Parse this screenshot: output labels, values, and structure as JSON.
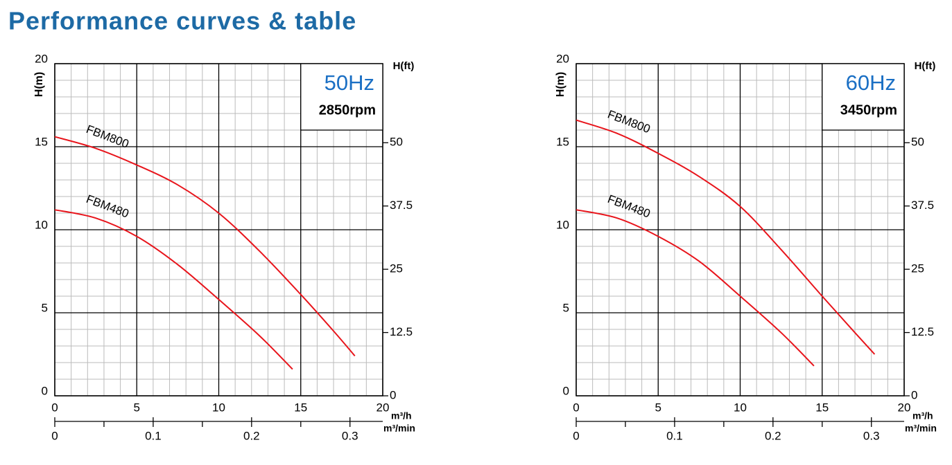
{
  "title": "Performance curves & table",
  "chart_data": [
    {
      "type": "line",
      "badge": "50Hz",
      "speed": "2850rpm",
      "ylabel": "H(m)",
      "y2label": "H(ft)",
      "xlabel": "m³/h",
      "x2label": "m³/min",
      "xlim": [
        0,
        20
      ],
      "xticks": [
        0,
        5,
        10,
        15,
        20
      ],
      "ylim": [
        0,
        20
      ],
      "yticks": [
        0,
        5,
        10,
        15,
        20
      ],
      "y2lim": [
        0,
        65.62
      ],
      "y2ticks": [
        0,
        12.5,
        25,
        37.5,
        50
      ],
      "x2lim": [
        0,
        0.3333
      ],
      "x2ticks": [
        0,
        0.1,
        0.2,
        0.3
      ],
      "x2minor_ticks": [
        0.05,
        0.15,
        0.25
      ],
      "grid": true,
      "minor_step": 1,
      "series": [
        {
          "name": "FBM800",
          "color": "#e8141b",
          "x": [
            0,
            2.5,
            5,
            7.5,
            10,
            12.5,
            15,
            17,
            18.3
          ],
          "values": [
            15.6,
            14.9,
            13.9,
            12.7,
            11.0,
            8.7,
            6.1,
            3.9,
            2.4
          ]
        },
        {
          "name": "FBM480",
          "color": "#e8141b",
          "x": [
            0,
            2.5,
            5,
            7.5,
            10,
            12.5,
            14.5
          ],
          "values": [
            11.2,
            10.7,
            9.6,
            7.9,
            5.8,
            3.6,
            1.6
          ]
        }
      ]
    },
    {
      "type": "line",
      "badge": "60Hz",
      "speed": "3450rpm",
      "ylabel": "H(m)",
      "y2label": "H(ft)",
      "xlabel": "m³/h",
      "x2label": "m³/min",
      "xlim": [
        0,
        20
      ],
      "xticks": [
        0,
        5,
        10,
        15,
        20
      ],
      "ylim": [
        0,
        20
      ],
      "yticks": [
        0,
        5,
        10,
        15,
        20
      ],
      "y2lim": [
        0,
        65.62
      ],
      "y2ticks": [
        0,
        12.5,
        25,
        37.5,
        50
      ],
      "x2lim": [
        0,
        0.3333
      ],
      "x2ticks": [
        0,
        0.1,
        0.2,
        0.3
      ],
      "x2minor_ticks": [
        0.05,
        0.15,
        0.25
      ],
      "grid": true,
      "minor_step": 1,
      "series": [
        {
          "name": "FBM800",
          "color": "#e8141b",
          "x": [
            0,
            2.5,
            5,
            7.5,
            10,
            12.5,
            15,
            17,
            18.2
          ],
          "values": [
            16.6,
            15.8,
            14.6,
            13.2,
            11.4,
            8.8,
            6.0,
            3.8,
            2.5
          ]
        },
        {
          "name": "FBM480",
          "color": "#e8141b",
          "x": [
            0,
            2.5,
            5,
            7.5,
            10,
            12.5,
            14.5
          ],
          "values": [
            11.2,
            10.7,
            9.6,
            8.1,
            6.0,
            3.8,
            1.8
          ]
        }
      ]
    }
  ]
}
